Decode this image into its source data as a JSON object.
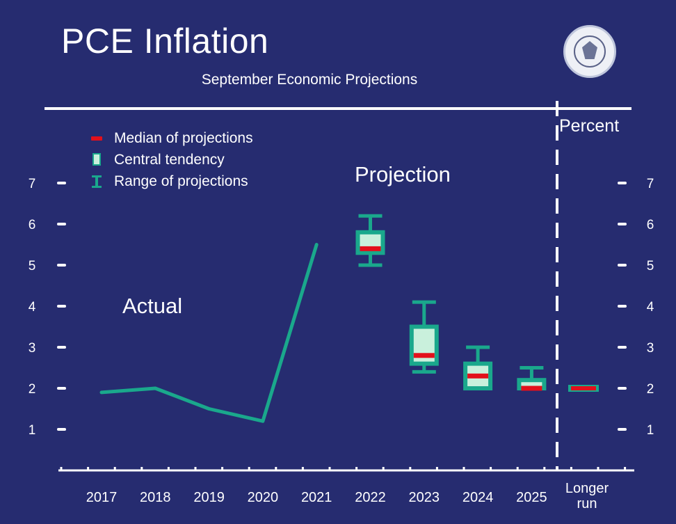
{
  "header": {
    "title": "PCE Inflation",
    "subtitle": "September Economic Projections",
    "unit_label": "Percent"
  },
  "legend": {
    "median": "Median of projections",
    "central": "Central tendency",
    "range": "Range of projections"
  },
  "annotations": {
    "actual": "Actual",
    "projection": "Projection"
  },
  "colors": {
    "background": "#262c70",
    "foreground": "#ffffff",
    "teal": "#1aa88c",
    "central_fill": "#c9f0dc",
    "median": "#e3101b"
  },
  "logo": "federal-reserve-seal",
  "chart_data": {
    "type": "line",
    "categories": [
      "2017",
      "2018",
      "2019",
      "2020",
      "2021",
      "2022",
      "2023",
      "2024",
      "2025",
      "Longer run"
    ],
    "y_ticks": [
      "1",
      "2",
      "3",
      "4",
      "5",
      "6",
      "7"
    ],
    "ylim": [
      0,
      7.5
    ],
    "actual": {
      "x": [
        "2017",
        "2018",
        "2019",
        "2020",
        "2021"
      ],
      "values": [
        1.9,
        2.0,
        1.5,
        1.2,
        5.5
      ]
    },
    "projections": [
      {
        "year": "2022",
        "range": [
          5.0,
          6.2
        ],
        "central": [
          5.3,
          5.8
        ],
        "median": 5.4
      },
      {
        "year": "2023",
        "range": [
          2.4,
          4.1
        ],
        "central": [
          2.6,
          3.5
        ],
        "median": 2.8
      },
      {
        "year": "2024",
        "range": [
          2.0,
          3.0
        ],
        "central": [
          2.0,
          2.6
        ],
        "median": 2.3
      },
      {
        "year": "2025",
        "range": [
          2.0,
          2.5
        ],
        "central": [
          2.0,
          2.2
        ],
        "median": 2.0
      },
      {
        "year": "Longer run",
        "range": [
          2.0,
          2.0
        ],
        "central": [
          2.0,
          2.0
        ],
        "median": 2.0
      }
    ]
  }
}
